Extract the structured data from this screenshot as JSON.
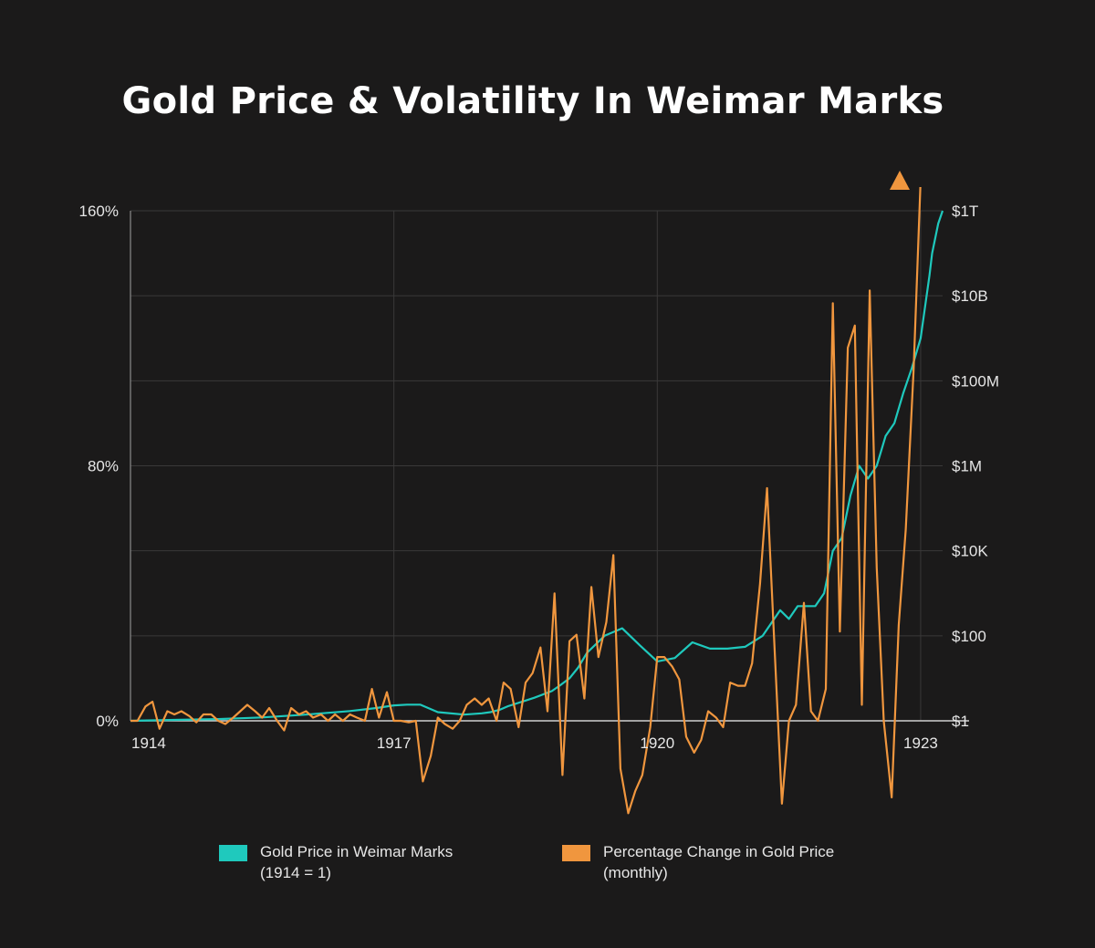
{
  "chart_data": {
    "type": "line",
    "title": "Gold Price & Volatility In Weimar Marks",
    "x_ticks": [
      "1914",
      "1917",
      "1920",
      "1923"
    ],
    "x_range": [
      1914,
      1923.25
    ],
    "y_left": {
      "ticks": [
        "160%",
        "80%",
        "0%"
      ],
      "range": [
        0,
        160
      ],
      "unit": "%"
    },
    "y_right": {
      "ticks": [
        "$1T",
        "$10B",
        "$100M",
        "$1M",
        "$10K",
        "$100",
        "$1"
      ],
      "scale": "log",
      "range": [
        1,
        1000000000000
      ]
    },
    "grid": true,
    "series": [
      {
        "name": "Gold Price in Weimar Marks",
        "name_note": "(1914 = 1)",
        "axis": "right",
        "color": "#1fc9bd",
        "x": [
          1914.0,
          1914.5,
          1915.0,
          1915.5,
          1916.0,
          1916.5,
          1916.8,
          1917.0,
          1917.15,
          1917.3,
          1917.5,
          1917.8,
          1918.0,
          1918.1,
          1918.2,
          1918.3,
          1918.5,
          1918.6,
          1918.8,
          1918.9,
          1919.0,
          1919.1,
          1919.2,
          1919.4,
          1919.6,
          1919.8,
          1920.0,
          1920.2,
          1920.4,
          1920.6,
          1920.8,
          1921.0,
          1921.2,
          1921.4,
          1921.5,
          1921.6,
          1921.8,
          1921.9,
          1922.0,
          1922.1,
          1922.2,
          1922.3,
          1922.4,
          1922.5,
          1922.6,
          1922.7,
          1922.8,
          1922.9,
          1923.0,
          1923.1,
          1923.13,
          1923.2,
          1923.25
        ],
        "y": [
          1,
          1.05,
          1.1,
          1.2,
          1.4,
          1.7,
          2,
          2.3,
          2.4,
          2.4,
          1.6,
          1.4,
          1.5,
          1.6,
          1.8,
          2.2,
          3,
          3.5,
          5,
          7,
          10,
          18,
          40,
          100,
          150,
          60,
          25,
          30,
          70,
          50,
          50,
          55,
          100,
          400,
          250,
          500,
          500,
          1000,
          10000,
          20000,
          200000,
          1000000,
          500000,
          1000000,
          5000000,
          10000000,
          50000000,
          200000000,
          1000000000,
          30000000000,
          100000000000,
          500000000000,
          1000000000000
        ]
      },
      {
        "name": "Percentage Change in Gold Price",
        "name_note": "(monthly)",
        "axis": "left",
        "color": "#f0963e",
        "x": [
          1914.0,
          1914.08,
          1914.17,
          1914.25,
          1914.33,
          1914.42,
          1914.5,
          1914.58,
          1914.67,
          1914.75,
          1914.83,
          1914.92,
          1915.0,
          1915.08,
          1915.17,
          1915.25,
          1915.33,
          1915.42,
          1915.5,
          1915.58,
          1915.67,
          1915.75,
          1915.83,
          1915.92,
          1916.0,
          1916.08,
          1916.17,
          1916.25,
          1916.33,
          1916.42,
          1916.5,
          1916.58,
          1916.67,
          1916.75,
          1916.83,
          1916.92,
          1917.0,
          1917.08,
          1917.17,
          1917.25,
          1917.33,
          1917.42,
          1917.5,
          1917.58,
          1917.67,
          1917.75,
          1917.83,
          1917.92,
          1918.0,
          1918.08,
          1918.17,
          1918.25,
          1918.33,
          1918.42,
          1918.5,
          1918.58,
          1918.67,
          1918.75,
          1918.83,
          1918.92,
          1919.0,
          1919.08,
          1919.17,
          1919.25,
          1919.33,
          1919.42,
          1919.5,
          1919.58,
          1919.67,
          1919.75,
          1919.83,
          1919.92,
          1920.0,
          1920.08,
          1920.17,
          1920.25,
          1920.33,
          1920.42,
          1920.5,
          1920.58,
          1920.67,
          1920.75,
          1920.83,
          1920.92,
          1921.0,
          1921.08,
          1921.17,
          1921.25,
          1921.33,
          1921.42,
          1921.5,
          1921.58,
          1921.67,
          1921.75,
          1921.83,
          1921.92,
          1922.0,
          1922.08,
          1922.17,
          1922.25,
          1922.33,
          1922.42,
          1922.5,
          1922.58,
          1922.67,
          1922.75,
          1922.83,
          1922.92,
          1923.0,
          1923.08,
          1923.17
        ],
        "y": [
          0,
          0,
          4.5,
          6,
          -2.5,
          3,
          2,
          3,
          1.5,
          -0.5,
          2,
          2,
          0,
          -1,
          1,
          3,
          5,
          3,
          1,
          4,
          0,
          -3,
          4,
          2,
          3,
          1,
          2,
          0,
          2,
          0,
          2,
          1,
          0,
          10,
          1,
          9,
          0,
          0,
          -0.5,
          0,
          -19,
          -11,
          1,
          -1,
          -2.5,
          0,
          5,
          7,
          5,
          7,
          0,
          12,
          10,
          -2,
          12,
          15,
          23,
          3,
          40,
          -17,
          25,
          27,
          7,
          42,
          20,
          31,
          52,
          -15,
          -29,
          -22,
          -17,
          -2,
          20,
          20,
          17,
          13,
          -5,
          -10,
          -6,
          3,
          1,
          -2,
          12,
          11,
          11,
          18,
          43,
          73,
          26,
          -26,
          0,
          5,
          37,
          3,
          0,
          10,
          131,
          28,
          117,
          124,
          5,
          135,
          48,
          0,
          -24,
          30,
          60,
          110,
          170,
          200,
          220
        ],
        "overflow_arrow": true
      }
    ]
  },
  "legend": [
    {
      "line1": "Gold Price in Weimar Marks",
      "line2": "(1914 = 1)",
      "color": "#1fc9bd"
    },
    {
      "line1": "Percentage Change in Gold Price",
      "line2": "(monthly)",
      "color": "#f0963e"
    }
  ]
}
